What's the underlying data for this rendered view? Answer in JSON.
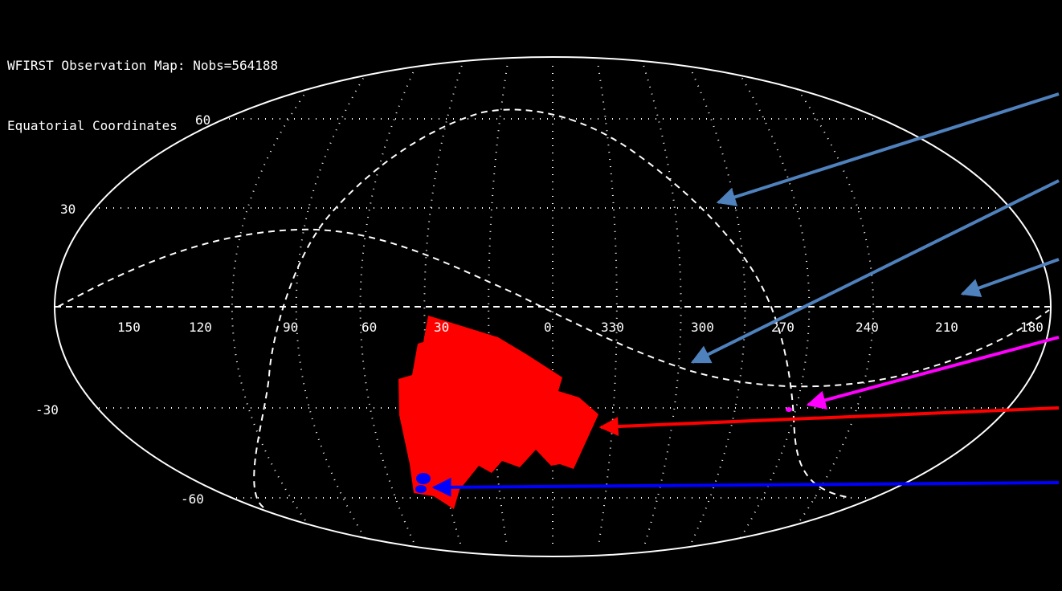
{
  "header": {
    "title": "WFIRST Observation Map: Nobs=564188",
    "subtitle": "Equatorial Coordinates"
  },
  "map": {
    "projection": "aitoff",
    "ra_labels": [
      "150",
      "120",
      "90",
      "60",
      "30",
      "0",
      "330",
      "300",
      "270",
      "240",
      "210",
      "180"
    ],
    "dec_labels": [
      "60",
      "30",
      "-30",
      "-60"
    ],
    "grid": "dotted",
    "boundary_color": "#ffffff",
    "dashed_curves_color": "#ffffff",
    "observation_colors": {
      "main_field": "#ff0000",
      "deep_field": "#0000ff",
      "small_field": "#ff00ff"
    },
    "annotation_arrows": [
      {
        "color": "#4f81bd",
        "points_to": "galactic-plane-curve"
      },
      {
        "color": "#4f81bd",
        "points_to": "ecliptic-curve"
      },
      {
        "color": "#4f81bd",
        "points_to": "celestial-equator"
      },
      {
        "color": "#ff00ff",
        "points_to": "small-field"
      },
      {
        "color": "#ff0000",
        "points_to": "main-survey-field"
      },
      {
        "color": "#0000ff",
        "points_to": "deep-field"
      }
    ]
  }
}
